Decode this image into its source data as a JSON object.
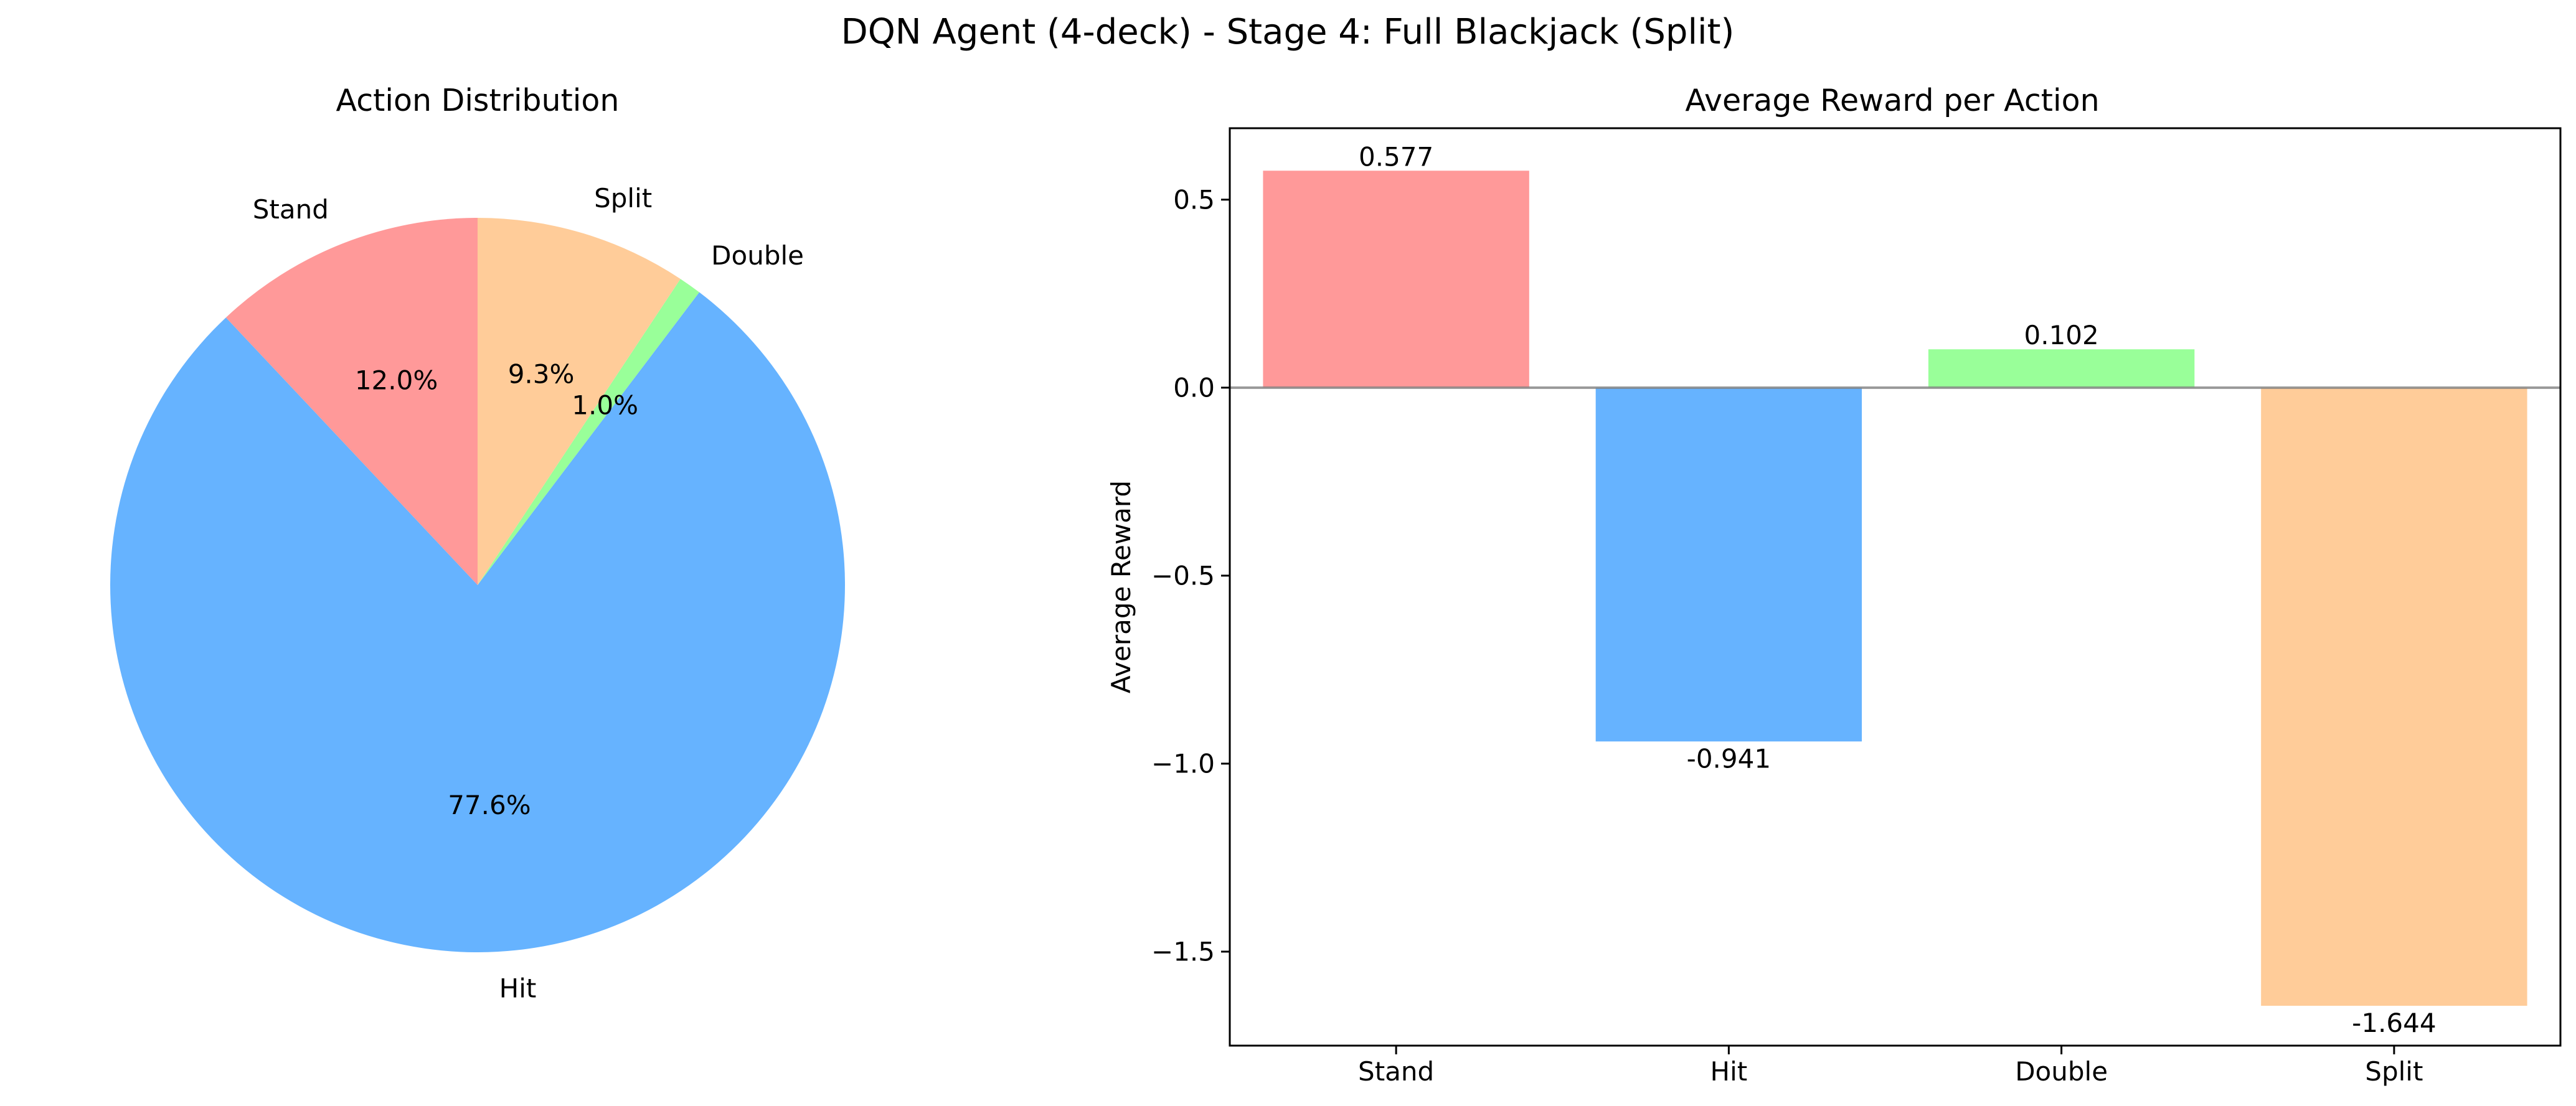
{
  "suptitle": "DQN Agent (4-deck) - Stage 4: Full Blackjack (Split)",
  "chart_data": [
    {
      "type": "pie",
      "title": "Action Distribution",
      "labels": [
        "Stand",
        "Hit",
        "Double",
        "Split"
      ],
      "values": [
        12.0,
        77.6,
        1.0,
        9.3
      ],
      "value_labels": [
        "12.0%",
        "77.6%",
        "1.0%",
        "9.3%"
      ],
      "colors": [
        "#ff9999",
        "#66b3ff",
        "#99ff99",
        "#ffcc99"
      ],
      "start_angle": "90deg (top)",
      "direction": "counterclockwise"
    },
    {
      "type": "bar",
      "title": "Average Reward per Action",
      "categories": [
        "Stand",
        "Hit",
        "Double",
        "Split"
      ],
      "values": [
        0.577,
        -0.941,
        0.102,
        -1.644
      ],
      "value_labels": [
        "0.577",
        "-0.941",
        "0.102",
        "-1.644"
      ],
      "colors": [
        "#ff9999",
        "#66b3ff",
        "#99ff99",
        "#ffcc99"
      ],
      "xlabel": "",
      "ylabel": "Average Reward",
      "ylim": [
        -1.75,
        0.69
      ],
      "yticks": [
        0.5,
        0.0,
        -0.5,
        -1.0,
        -1.5
      ],
      "ytick_labels": [
        "0.5",
        "0.0",
        "−0.5",
        "−1.0",
        "−1.5"
      ],
      "zero_line": true,
      "grid": false
    }
  ]
}
